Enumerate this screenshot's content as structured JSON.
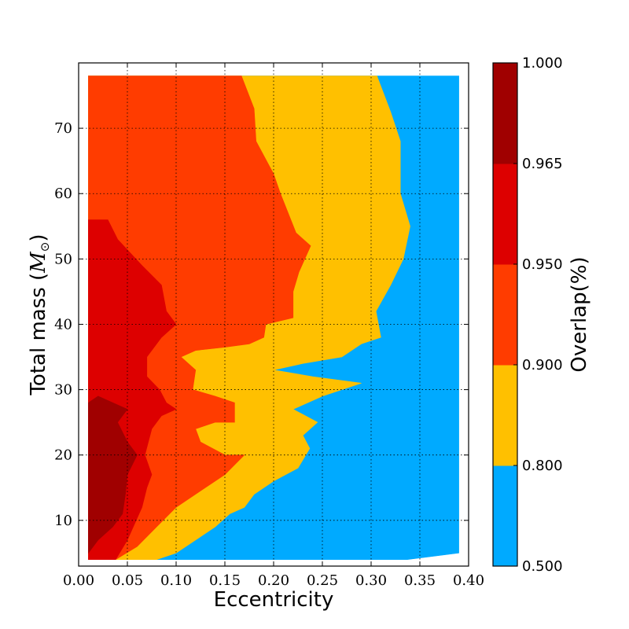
{
  "chart_data": {
    "type": "contourf",
    "xlabel": "Eccentricity",
    "ylabel": "Total mass ($M_{\\odot}$)",
    "ylabel_text": "Total mass (",
    "ylabel_math": "M",
    "ylabel_sub": "⊙",
    "ylabel_close": ")",
    "colorbar_label": "Overlap(%)",
    "xlim": [
      0.0,
      0.4
    ],
    "ylim": [
      3,
      80
    ],
    "xticks": [
      "0.00",
      "0.05",
      "0.10",
      "0.15",
      "0.20",
      "0.25",
      "0.30",
      "0.35",
      "0.40"
    ],
    "xtick_values": [
      0.0,
      0.05,
      0.1,
      0.15,
      0.2,
      0.25,
      0.3,
      0.35,
      0.4
    ],
    "yticks": [
      "10",
      "20",
      "30",
      "40",
      "50",
      "60",
      "70"
    ],
    "ytick_values": [
      10,
      20,
      30,
      40,
      50,
      60,
      70
    ],
    "grid": true,
    "levels": [
      {
        "min": 0.5,
        "max": 0.8,
        "color": "#00aaff"
      },
      {
        "min": 0.8,
        "max": 0.9,
        "color": "#ffc000"
      },
      {
        "min": 0.9,
        "max": 0.95,
        "color": "#ff3c00"
      },
      {
        "min": 0.95,
        "max": 0.965,
        "color": "#dd0000"
      },
      {
        "min": 0.965,
        "max": 1.0,
        "color": "#a00000"
      }
    ],
    "colorbar_ticks": [
      "0.500",
      "0.800",
      "0.900",
      "0.950",
      "0.965",
      "1.000"
    ],
    "regions": [
      {
        "level": 0,
        "points": [
          [
            0.08,
            4
          ],
          [
            0.337,
            4
          ],
          [
            0.39,
            5
          ],
          [
            0.39,
            78
          ],
          [
            0.01,
            78
          ],
          [
            0.01,
            4
          ]
        ]
      },
      {
        "level": 1,
        "points": [
          [
            0.01,
            78
          ],
          [
            0.306,
            78
          ],
          [
            0.32,
            72.5
          ],
          [
            0.33,
            68
          ],
          [
            0.33,
            60
          ],
          [
            0.34,
            55
          ],
          [
            0.333,
            50
          ],
          [
            0.32,
            46
          ],
          [
            0.305,
            42
          ],
          [
            0.31,
            38
          ],
          [
            0.29,
            37
          ],
          [
            0.27,
            35
          ],
          [
            0.23,
            34
          ],
          [
            0.2,
            33
          ],
          [
            0.24,
            32
          ],
          [
            0.29,
            31
          ],
          [
            0.25,
            29
          ],
          [
            0.22,
            27
          ],
          [
            0.245,
            25
          ],
          [
            0.23,
            23
          ],
          [
            0.237,
            21
          ],
          [
            0.225,
            18
          ],
          [
            0.2,
            16
          ],
          [
            0.18,
            14
          ],
          [
            0.17,
            12
          ],
          [
            0.155,
            11
          ],
          [
            0.14,
            9
          ],
          [
            0.1,
            5
          ],
          [
            0.08,
            4
          ],
          [
            0.01,
            4
          ]
        ]
      },
      {
        "level": 2,
        "points": [
          [
            0.01,
            78
          ],
          [
            0.167,
            78
          ],
          [
            0.18,
            73
          ],
          [
            0.182,
            68
          ],
          [
            0.2,
            63
          ],
          [
            0.207,
            60
          ],
          [
            0.223,
            54
          ],
          [
            0.238,
            52
          ],
          [
            0.226,
            48
          ],
          [
            0.22,
            45
          ],
          [
            0.22,
            41
          ],
          [
            0.192,
            40
          ],
          [
            0.19,
            38
          ],
          [
            0.175,
            37
          ],
          [
            0.15,
            36.5
          ],
          [
            0.12,
            36
          ],
          [
            0.105,
            35
          ],
          [
            0.12,
            33
          ],
          [
            0.117,
            30
          ],
          [
            0.14,
            29
          ],
          [
            0.16,
            28
          ],
          [
            0.16,
            25
          ],
          [
            0.14,
            25
          ],
          [
            0.12,
            24
          ],
          [
            0.125,
            22
          ],
          [
            0.15,
            20
          ],
          [
            0.17,
            20
          ],
          [
            0.15,
            17
          ],
          [
            0.1,
            12
          ],
          [
            0.08,
            9
          ],
          [
            0.06,
            6
          ],
          [
            0.038,
            4
          ],
          [
            0.01,
            4
          ]
        ]
      },
      {
        "level": 3,
        "points": [
          [
            0.01,
            56
          ],
          [
            0.03,
            56
          ],
          [
            0.04,
            53
          ],
          [
            0.065,
            49
          ],
          [
            0.085,
            46
          ],
          [
            0.09,
            42
          ],
          [
            0.1,
            40
          ],
          [
            0.085,
            38
          ],
          [
            0.07,
            35
          ],
          [
            0.07,
            32
          ],
          [
            0.083,
            30
          ],
          [
            0.09,
            28
          ],
          [
            0.1,
            27
          ],
          [
            0.085,
            26
          ],
          [
            0.075,
            24
          ],
          [
            0.068,
            20
          ],
          [
            0.075,
            17
          ],
          [
            0.07,
            15
          ],
          [
            0.065,
            12
          ],
          [
            0.05,
            7
          ],
          [
            0.038,
            4
          ],
          [
            0.01,
            4
          ]
        ]
      },
      {
        "level": 4,
        "points": [
          [
            0.01,
            28
          ],
          [
            0.02,
            29
          ],
          [
            0.05,
            27
          ],
          [
            0.04,
            25
          ],
          [
            0.05,
            22
          ],
          [
            0.06,
            20
          ],
          [
            0.05,
            17
          ],
          [
            0.048,
            14
          ],
          [
            0.045,
            11
          ],
          [
            0.035,
            9
          ],
          [
            0.02,
            7
          ],
          [
            0.01,
            5
          ]
        ]
      }
    ]
  }
}
